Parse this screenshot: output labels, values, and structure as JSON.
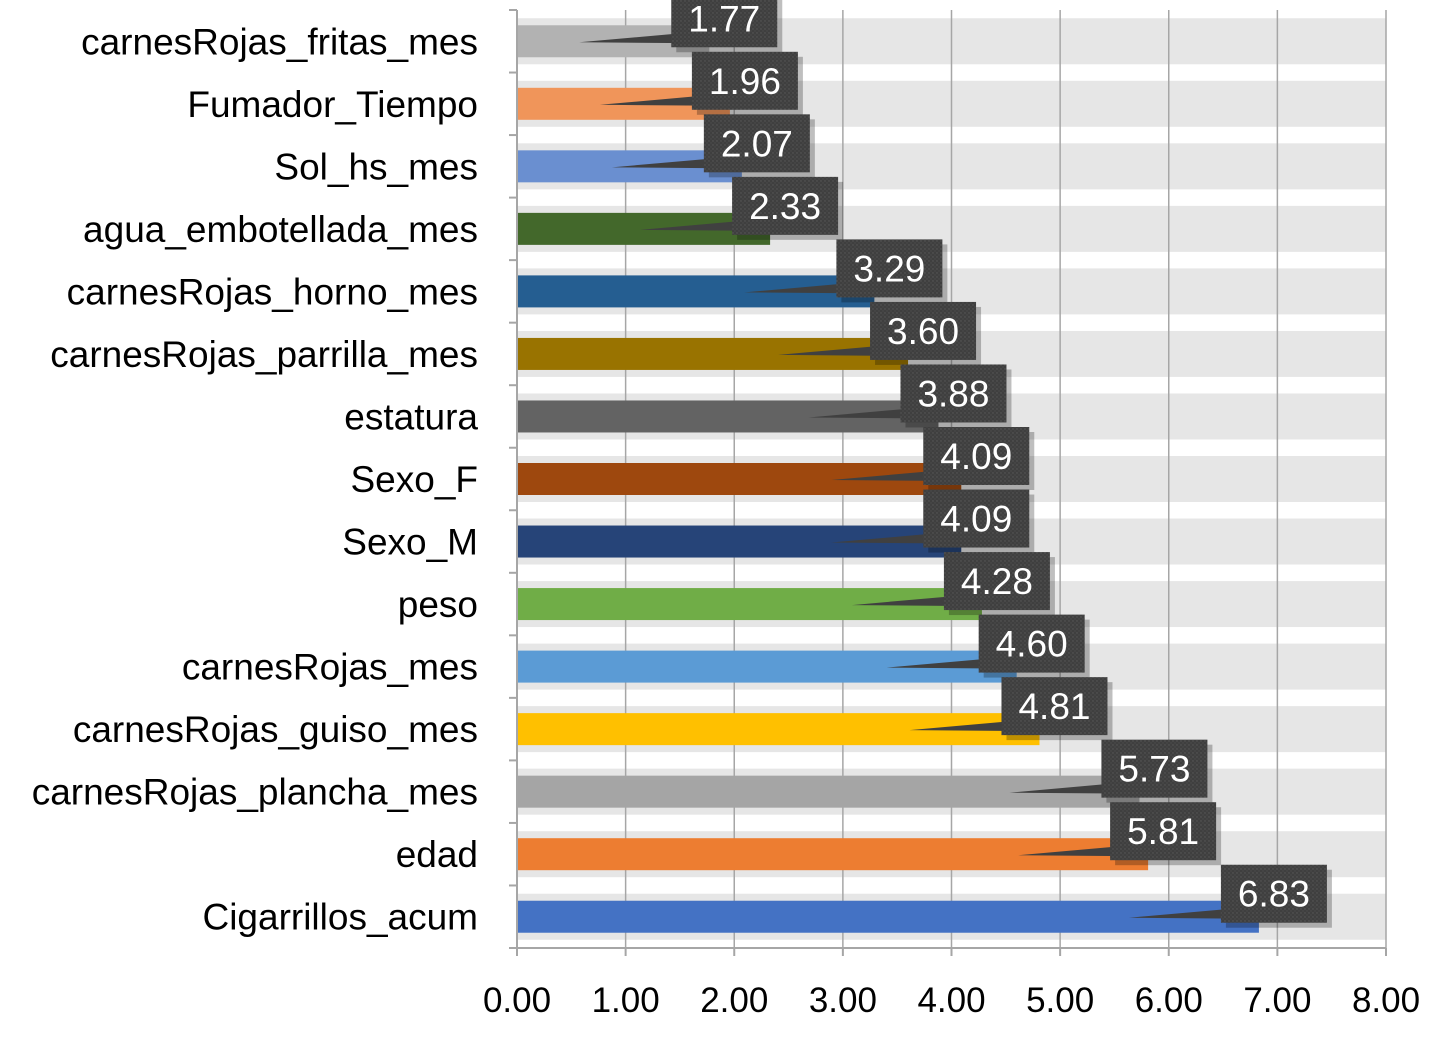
{
  "chart_data": {
    "type": "bar",
    "orientation": "horizontal",
    "title": "",
    "xlabel": "",
    "ylabel": "",
    "xlim": [
      0,
      8
    ],
    "x_ticks": [
      0,
      1,
      2,
      3,
      4,
      5,
      6,
      7,
      8
    ],
    "x_tick_labels": [
      "0.00",
      "1.00",
      "2.00",
      "3.00",
      "4.00",
      "5.00",
      "6.00",
      "7.00",
      "8.00"
    ],
    "grid": "vertical",
    "legend": "none",
    "categories": [
      "carnesRojas_fritas_mes",
      "Fumador_Tiempo",
      "Sol_hs_mes",
      "agua_embotellada_mes",
      "carnesRojas_horno_mes",
      "carnesRojas_parrilla_mes",
      "estatura",
      "Sexo_F",
      "Sexo_M",
      "peso",
      "carnesRojas_mes",
      "carnesRojas_guiso_mes",
      "carnesRojas_plancha_mes",
      "edad",
      "Cigarrillos_acum"
    ],
    "values": [
      1.77,
      1.96,
      2.07,
      2.33,
      3.29,
      3.6,
      3.88,
      4.09,
      4.09,
      4.28,
      4.6,
      4.81,
      5.73,
      5.81,
      6.83
    ],
    "value_labels": [
      "1.77",
      "1.96",
      "2.07",
      "2.33",
      "3.29",
      "3.60",
      "3.88",
      "4.09",
      "4.09",
      "4.28",
      "4.60",
      "4.81",
      "5.73",
      "5.81",
      "6.83"
    ],
    "colors": [
      "#b2b2b2",
      "#f0955a",
      "#6a8fd0",
      "#43682b",
      "#255e91",
      "#997300",
      "#636363",
      "#9e480e",
      "#264478",
      "#70ad47",
      "#5b9bd5",
      "#ffc000",
      "#a5a5a5",
      "#ed7d31",
      "#4472c4"
    ],
    "label_box_color": "#404040",
    "label_text_color": "#ffffff",
    "grid_color": "#a6a6a6",
    "band_color": "#e6e6e6"
  }
}
